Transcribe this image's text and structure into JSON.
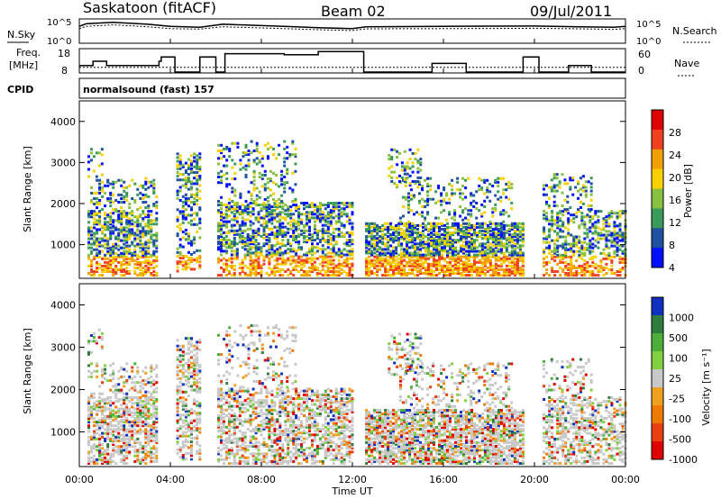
{
  "header": {
    "station": "Saskatoon (fitACF)",
    "beam": "Beam 02",
    "date": "09/Jul/2011"
  },
  "strips": {
    "nsky_label": "N.Sky",
    "nsearch_label": "N.Search",
    "noise_ticks_left": [
      "10^5",
      "10^0"
    ],
    "noise_ticks_right": [
      "10^5",
      "10^0"
    ],
    "freq_label_1": "Freq.",
    "freq_label_2": "[MHz]",
    "freq_ticks": [
      "18",
      "8"
    ],
    "nave_label": "Nave",
    "nave_ticks": [
      "60",
      "0"
    ],
    "cpid_label": "CPID",
    "cpid_value": "normalsound (fast) 157"
  },
  "panels": {
    "ylabel": "Slant Range [km]",
    "yticks": [
      "4000",
      "3000",
      "2000",
      "1000"
    ],
    "xticks": [
      "00:00",
      "04:00",
      "08:00",
      "12:00",
      "16:00",
      "20:00",
      "00:00"
    ],
    "xlabel": "Time UT"
  },
  "colorbars": {
    "power": {
      "title": "Power [dB]",
      "ticks": [
        "28",
        "24",
        "20",
        "16",
        "12",
        "8",
        "4"
      ],
      "colors": [
        "#e00000",
        "#f04020",
        "#f0a000",
        "#f8d000",
        "#88c040",
        "#3a9a5a",
        "#2050a0",
        "#0010ff"
      ]
    },
    "velocity": {
      "title": "Velocity [m s⁻¹]",
      "ticks": [
        "1000",
        "500",
        "100",
        "25",
        "-25",
        "-100",
        "-500",
        "-1000"
      ],
      "colors": [
        "#1030c0",
        "#2e7d3e",
        "#4caf3a",
        "#80d040",
        "#c8c8c8",
        "#f0a020",
        "#f07a00",
        "#e84010",
        "#e00000"
      ]
    }
  },
  "chart_data": [
    {
      "type": "line",
      "name": "noise",
      "x_range_hours": [
        0,
        24
      ],
      "y_scale": "log",
      "ylim": [
        1,
        100000
      ],
      "x": [
        0,
        0.3,
        1.5,
        3.0,
        4.0,
        5.3,
        6.3,
        9.0,
        10.5,
        12.0,
        12.6,
        16.0,
        20.0,
        22.0,
        23.5,
        24
      ],
      "sky": [
        3000,
        10000,
        20000,
        8000,
        3000,
        2000,
        8000,
        3000,
        1500,
        1000,
        2500,
        3000,
        3500,
        2500,
        2000,
        3000
      ],
      "search": [
        1000,
        3000,
        6000,
        2500,
        1000,
        800,
        2500,
        1000,
        600,
        400,
        900,
        1000,
        1200,
        900,
        700,
        1000
      ]
    },
    {
      "type": "line",
      "name": "frequency_and_nave",
      "x_range_hours": [
        0,
        24
      ],
      "freq_ylim": [
        8,
        18
      ],
      "nave_ylim": [
        0,
        60
      ],
      "freq_steps": [
        {
          "t0": 0.0,
          "t1": 0.6,
          "f": 11
        },
        {
          "t0": 0.6,
          "t1": 1.2,
          "f": 13
        },
        {
          "t0": 1.2,
          "t1": 3.5,
          "f": 11
        },
        {
          "t0": 3.5,
          "t1": 3.6,
          "f": 13
        },
        {
          "t0": 3.6,
          "t1": 4.2,
          "f": 15
        },
        {
          "t0": 4.2,
          "t1": 5.3,
          "f": 8
        },
        {
          "t0": 5.3,
          "t1": 5.4,
          "f": 15
        },
        {
          "t0": 5.4,
          "t1": 6.0,
          "f": 15
        },
        {
          "t0": 6.0,
          "t1": 6.4,
          "f": 8
        },
        {
          "t0": 6.4,
          "t1": 9.0,
          "f": 16.5
        },
        {
          "t0": 9.0,
          "t1": 10.5,
          "f": 16
        },
        {
          "t0": 10.5,
          "t1": 12.5,
          "f": 17.5
        },
        {
          "t0": 12.5,
          "t1": 14.0,
          "f": 8
        },
        {
          "t0": 14.0,
          "t1": 15.5,
          "f": 8
        },
        {
          "t0": 15.5,
          "t1": 17.0,
          "f": 12
        },
        {
          "t0": 17.0,
          "t1": 19.5,
          "f": 8
        },
        {
          "t0": 19.5,
          "t1": 20.2,
          "f": 15
        },
        {
          "t0": 20.2,
          "t1": 21.5,
          "f": 8
        },
        {
          "t0": 21.5,
          "t1": 22.5,
          "f": 11
        },
        {
          "t0": 22.5,
          "t1": 24,
          "f": 8
        }
      ],
      "nave_level": 13
    },
    {
      "type": "heatmap",
      "name": "power",
      "x_range_hours": [
        0,
        24
      ],
      "ylim_km": [
        180,
        4500
      ],
      "data_gaps_hours": [
        [
          3.5,
          4.2
        ],
        [
          5.3,
          6.0
        ],
        [
          12.0,
          12.5
        ],
        [
          19.5,
          19.8
        ],
        [
          20.0,
          20.3
        ]
      ],
      "clim_db": [
        3,
        30
      ]
    },
    {
      "type": "heatmap",
      "name": "velocity",
      "x_range_hours": [
        0,
        24
      ],
      "ylim_km": [
        180,
        4500
      ],
      "data_gaps_hours": [
        [
          3.5,
          4.2
        ],
        [
          5.3,
          6.0
        ],
        [
          12.0,
          12.5
        ],
        [
          19.5,
          19.8
        ],
        [
          20.0,
          20.3
        ]
      ],
      "clim_ms": [
        -1000,
        1000
      ]
    }
  ]
}
